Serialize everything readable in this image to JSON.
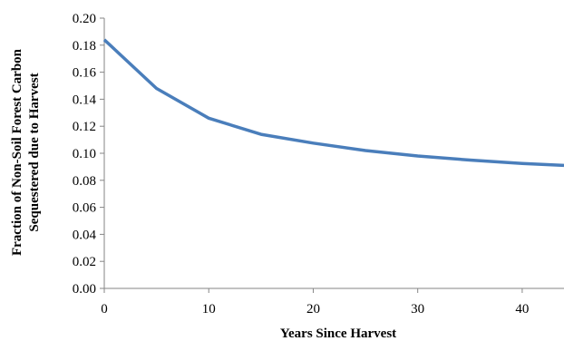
{
  "chart_data": {
    "type": "line",
    "title": "",
    "xlabel": "Years Since Harvest",
    "ylabel_lines": [
      "Fraction of Non-Soil Forest Carbon",
      "Sequestered due to Harvest"
    ],
    "xlim": [
      0,
      44
    ],
    "ylim": [
      0,
      0.2
    ],
    "x_ticks": [
      0,
      10,
      20,
      30,
      40
    ],
    "x_tick_labels": [
      "0",
      "10",
      "20",
      "30",
      "40"
    ],
    "y_ticks": [
      0,
      0.02,
      0.04,
      0.06,
      0.08,
      0.1,
      0.12,
      0.14,
      0.16,
      0.18,
      0.2
    ],
    "y_tick_labels": [
      "0.00",
      "0.02",
      "0.04",
      "0.06",
      "0.08",
      "0.10",
      "0.12",
      "0.14",
      "0.16",
      "0.18",
      "0.20"
    ],
    "grid": false,
    "legend": "none",
    "series": [
      {
        "color": "#4a7ebb",
        "x": [
          0,
          5,
          10,
          15,
          20,
          25,
          30,
          35,
          40,
          44
        ],
        "y": [
          0.184,
          0.148,
          0.126,
          0.114,
          0.1075,
          0.102,
          0.098,
          0.095,
          0.0925,
          0.091
        ]
      }
    ]
  }
}
